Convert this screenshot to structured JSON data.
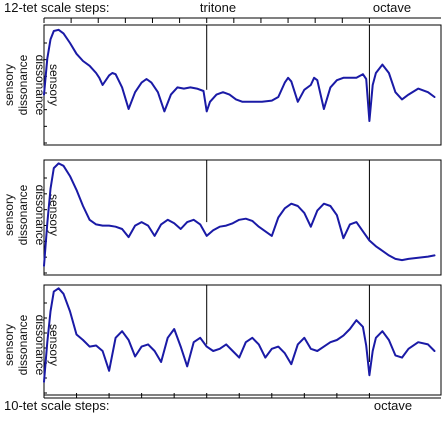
{
  "chart_data": {
    "type": "line",
    "top_axis": {
      "caption": "12-tet scale steps:",
      "marker_labels": [
        "tritone",
        "octave"
      ],
      "steps": 13
    },
    "bottom_axis": {
      "caption": "10-tet scale steps:",
      "marker_labels": [
        "octave"
      ],
      "steps": 11
    },
    "ylabel_line1": "sensory",
    "ylabel_line2": "dissonance",
    "ylabel_mirrored": "dissonance",
    "ylabel_mirrored2": "sensory",
    "xlim": [
      0,
      1.22
    ],
    "ylim": [
      0,
      1
    ],
    "colors": {
      "curve": "#1a1aa6"
    },
    "panels": [
      {
        "markers": [
          0.5,
          1.0
        ],
        "x": [
          0.0,
          0.01,
          0.02,
          0.03,
          0.045,
          0.06,
          0.08,
          0.1,
          0.12,
          0.14,
          0.16,
          0.17,
          0.18,
          0.2,
          0.21,
          0.22,
          0.24,
          0.26,
          0.28,
          0.3,
          0.315,
          0.33,
          0.35,
          0.37,
          0.39,
          0.41,
          0.43,
          0.45,
          0.47,
          0.49,
          0.5,
          0.51,
          0.53,
          0.55,
          0.57,
          0.59,
          0.61,
          0.64,
          0.67,
          0.7,
          0.72,
          0.74,
          0.75,
          0.76,
          0.78,
          0.8,
          0.82,
          0.83,
          0.84,
          0.86,
          0.88,
          0.9,
          0.92,
          0.94,
          0.96,
          0.98,
          0.99,
          1.0,
          1.01,
          1.02,
          1.04,
          1.06,
          1.08,
          1.1,
          1.12,
          1.15,
          1.18,
          1.2
        ],
        "y": [
          0.42,
          0.72,
          0.88,
          0.95,
          0.96,
          0.93,
          0.85,
          0.76,
          0.7,
          0.66,
          0.6,
          0.56,
          0.5,
          0.58,
          0.6,
          0.59,
          0.48,
          0.3,
          0.44,
          0.52,
          0.55,
          0.52,
          0.44,
          0.28,
          0.42,
          0.48,
          0.47,
          0.48,
          0.47,
          0.45,
          0.28,
          0.36,
          0.42,
          0.44,
          0.42,
          0.38,
          0.36,
          0.36,
          0.36,
          0.37,
          0.4,
          0.52,
          0.56,
          0.53,
          0.36,
          0.46,
          0.5,
          0.56,
          0.54,
          0.3,
          0.48,
          0.54,
          0.56,
          0.56,
          0.56,
          0.59,
          0.55,
          0.2,
          0.5,
          0.6,
          0.67,
          0.6,
          0.44,
          0.38,
          0.42,
          0.47,
          0.44,
          0.4
        ]
      },
      {
        "markers": [
          0.5,
          1.0
        ],
        "x": [
          0.0,
          0.01,
          0.02,
          0.03,
          0.045,
          0.06,
          0.08,
          0.1,
          0.12,
          0.14,
          0.16,
          0.18,
          0.2,
          0.22,
          0.24,
          0.26,
          0.28,
          0.3,
          0.32,
          0.34,
          0.36,
          0.38,
          0.4,
          0.42,
          0.44,
          0.46,
          0.48,
          0.5,
          0.52,
          0.54,
          0.56,
          0.58,
          0.6,
          0.62,
          0.64,
          0.66,
          0.68,
          0.7,
          0.72,
          0.74,
          0.76,
          0.78,
          0.8,
          0.82,
          0.84,
          0.86,
          0.88,
          0.9,
          0.92,
          0.94,
          0.96,
          0.98,
          1.0,
          1.02,
          1.04,
          1.06,
          1.08,
          1.1,
          1.12,
          1.15,
          1.18,
          1.2
        ],
        "y": [
          0.08,
          0.45,
          0.75,
          0.93,
          0.97,
          0.95,
          0.86,
          0.74,
          0.6,
          0.48,
          0.44,
          0.43,
          0.43,
          0.42,
          0.4,
          0.33,
          0.43,
          0.46,
          0.43,
          0.34,
          0.44,
          0.48,
          0.45,
          0.4,
          0.46,
          0.48,
          0.44,
          0.34,
          0.39,
          0.42,
          0.43,
          0.45,
          0.48,
          0.49,
          0.47,
          0.42,
          0.38,
          0.34,
          0.5,
          0.58,
          0.62,
          0.6,
          0.54,
          0.42,
          0.56,
          0.62,
          0.6,
          0.52,
          0.32,
          0.44,
          0.46,
          0.38,
          0.3,
          0.25,
          0.21,
          0.17,
          0.14,
          0.13,
          0.14,
          0.15,
          0.16,
          0.17
        ]
      },
      {
        "markers": [
          0.5,
          1.0
        ],
        "x": [
          0.0,
          0.01,
          0.02,
          0.03,
          0.045,
          0.06,
          0.08,
          0.1,
          0.12,
          0.14,
          0.16,
          0.18,
          0.2,
          0.22,
          0.24,
          0.26,
          0.28,
          0.3,
          0.32,
          0.34,
          0.36,
          0.38,
          0.4,
          0.42,
          0.44,
          0.46,
          0.48,
          0.5,
          0.52,
          0.54,
          0.56,
          0.58,
          0.6,
          0.62,
          0.64,
          0.66,
          0.68,
          0.7,
          0.72,
          0.74,
          0.76,
          0.78,
          0.8,
          0.82,
          0.84,
          0.86,
          0.88,
          0.9,
          0.92,
          0.94,
          0.96,
          0.98,
          0.99,
          1.0,
          1.01,
          1.02,
          1.04,
          1.06,
          1.08,
          1.1,
          1.12,
          1.15,
          1.18,
          1.2
        ],
        "y": [
          0.12,
          0.48,
          0.76,
          0.94,
          0.97,
          0.92,
          0.76,
          0.55,
          0.5,
          0.44,
          0.45,
          0.4,
          0.22,
          0.52,
          0.58,
          0.5,
          0.35,
          0.44,
          0.46,
          0.4,
          0.3,
          0.52,
          0.6,
          0.44,
          0.26,
          0.48,
          0.52,
          0.44,
          0.4,
          0.42,
          0.46,
          0.4,
          0.34,
          0.48,
          0.52,
          0.46,
          0.34,
          0.42,
          0.44,
          0.38,
          0.28,
          0.46,
          0.52,
          0.42,
          0.4,
          0.44,
          0.48,
          0.5,
          0.54,
          0.6,
          0.68,
          0.62,
          0.45,
          0.18,
          0.4,
          0.52,
          0.58,
          0.5,
          0.36,
          0.34,
          0.42,
          0.48,
          0.46,
          0.4
        ]
      }
    ]
  }
}
